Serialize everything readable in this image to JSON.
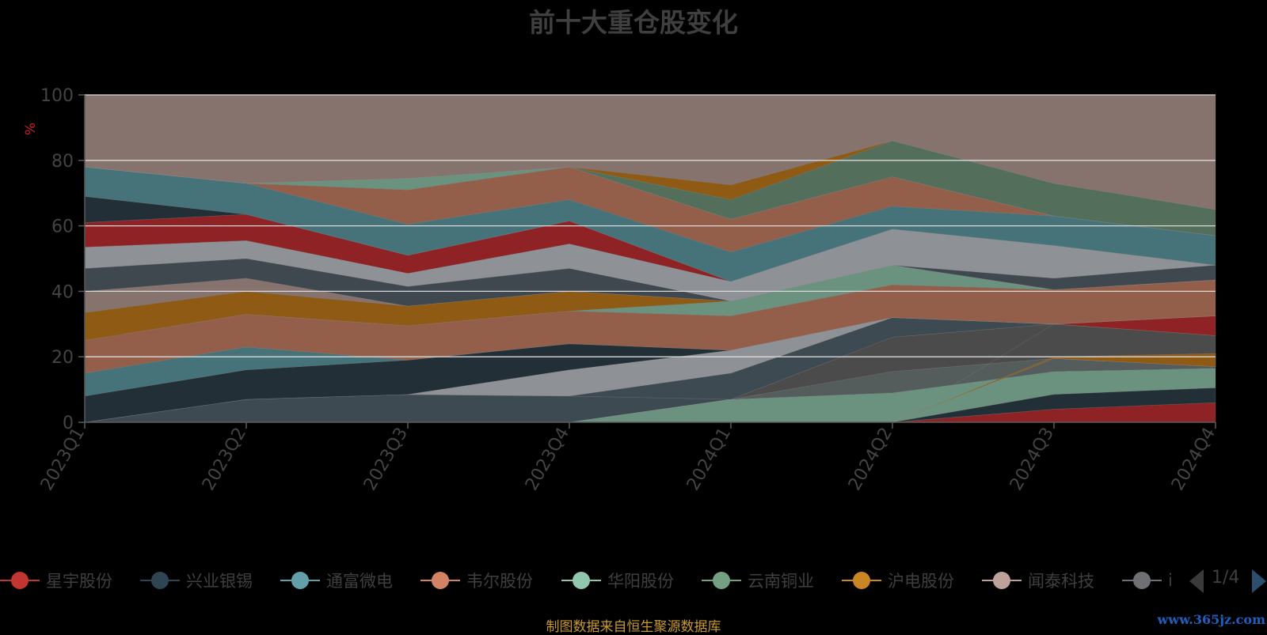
{
  "title": "前十大重仓股变化",
  "source_note": "制图数据来自恒生聚源数据库",
  "watermark": "www.365jz.com",
  "legend_pager": {
    "text": "1/4"
  },
  "chart_data": {
    "type": "area",
    "title": "前十大重仓股变化",
    "ylabel": "%",
    "xlabel": "",
    "ylim": [
      0,
      100
    ],
    "yticks": [
      0,
      20,
      40,
      60,
      80,
      100
    ],
    "grid": true,
    "legend_position": "bottom",
    "categories": [
      "2023Q1",
      "2023Q2",
      "2023Q3",
      "2023Q4",
      "2024Q1",
      "2024Q2",
      "2024Q3",
      "2024Q4"
    ],
    "legend_items": [
      {
        "label": "星宇股份",
        "color": "#c23531"
      },
      {
        "label": "兴业银锡",
        "color": "#2f4554"
      },
      {
        "label": "通富微电",
        "color": "#61a0a8"
      },
      {
        "label": "韦尔股份",
        "color": "#d48265"
      },
      {
        "label": "华阳股份",
        "color": "#91c7ae"
      },
      {
        "label": "云南铜业",
        "color": "#749f83"
      },
      {
        "label": "沪电股份",
        "color": "#ca8622"
      },
      {
        "label": "闻泰科技",
        "color": "#bda29a"
      },
      {
        "label": "i",
        "color": "#6e7074"
      }
    ],
    "bands": [
      {
        "color": "#3e4a51",
        "values": [
          [
            0,
            0
          ],
          [
            0,
            7
          ],
          [
            0,
            8.5
          ],
          [
            0,
            8
          ],
          [
            0,
            7
          ],
          [
            0,
            0
          ],
          [
            0,
            0
          ],
          [
            0,
            0
          ]
        ]
      },
      {
        "color": "#6a927e",
        "values": [
          [
            0,
            0
          ],
          [
            0,
            0
          ],
          [
            0,
            0
          ],
          [
            0,
            0
          ],
          [
            0,
            7
          ],
          [
            0,
            9
          ],
          [
            8.5,
            15.5
          ],
          [
            10.5,
            16.5
          ]
        ]
      },
      {
        "color": "#8f2225",
        "values": [
          [
            0,
            0
          ],
          [
            0,
            0
          ],
          [
            0,
            0
          ],
          [
            0,
            0
          ],
          [
            0,
            0
          ],
          [
            0,
            0
          ],
          [
            0,
            4
          ],
          [
            0,
            6
          ]
        ]
      },
      {
        "color": "#222f37",
        "values": [
          [
            0,
            0
          ],
          [
            0,
            0
          ],
          [
            0,
            0
          ],
          [
            0,
            0
          ],
          [
            0,
            0
          ],
          [
            0,
            0
          ],
          [
            4,
            8.5
          ],
          [
            6,
            10.5
          ]
        ]
      },
      {
        "color": "#545c5c",
        "values": [
          [
            0,
            0
          ],
          [
            0,
            0
          ],
          [
            0,
            0
          ],
          [
            0,
            0
          ],
          [
            7,
            7
          ],
          [
            9,
            15.5
          ],
          [
            15.5,
            19.5
          ],
          [
            16.5,
            17
          ]
        ]
      },
      {
        "color": "#4b4b4b",
        "values": [
          [
            0,
            0
          ],
          [
            0,
            0
          ],
          [
            0,
            0
          ],
          [
            0,
            0
          ],
          [
            7,
            7
          ],
          [
            15.5,
            26
          ],
          [
            19.5,
            30
          ],
          [
            17,
            26.5
          ]
        ]
      },
      {
        "color": "#945f59",
        "values": [
          [
            0,
            0
          ],
          [
            0,
            0
          ],
          [
            0,
            0
          ],
          [
            0,
            0
          ],
          [
            0,
            0
          ],
          [
            0,
            0
          ],
          [
            19.5,
            19.5
          ],
          [
            17,
            21
          ]
        ]
      },
      {
        "color": "#8e5a14",
        "values": [
          [
            0,
            0
          ],
          [
            0,
            0
          ],
          [
            0,
            0
          ],
          [
            0,
            0
          ],
          [
            0,
            0
          ],
          [
            0,
            0
          ],
          [
            19.5,
            20
          ],
          [
            17,
            21
          ]
        ]
      },
      {
        "color": "#3e4a51",
        "values": [
          [
            0,
            0
          ],
          [
            7,
            7
          ],
          [
            8.5,
            8.5
          ],
          [
            8,
            16
          ],
          [
            7,
            15
          ],
          [
            26,
            32
          ],
          [
            30,
            30
          ],
          [
            26.5,
            26.5
          ]
        ]
      },
      {
        "color": "#8f2225",
        "values": [
          [
            0,
            0
          ],
          [
            0,
            0
          ],
          [
            0,
            0
          ],
          [
            0,
            0
          ],
          [
            0,
            0
          ],
          [
            0,
            0
          ],
          [
            30,
            30
          ],
          [
            26.5,
            32.5
          ]
        ]
      },
      {
        "color": "#8e9196",
        "values": [
          [
            0,
            0
          ],
          [
            7,
            7
          ],
          [
            8.5,
            8.5
          ],
          [
            8,
            16
          ],
          [
            15,
            22
          ],
          [
            32,
            32
          ],
          [
            30,
            30
          ],
          [
            32.5,
            32.5
          ]
        ]
      },
      {
        "color": "#222f37",
        "values": [
          [
            0,
            8
          ],
          [
            7,
            16
          ],
          [
            8.5,
            19
          ],
          [
            16,
            24
          ],
          [
            22,
            22
          ],
          [
            32,
            32
          ],
          [
            30,
            30
          ],
          [
            32.5,
            32.5
          ]
        ]
      },
      {
        "color": "#457379",
        "values": [
          [
            8,
            15
          ],
          [
            16,
            23
          ],
          [
            19,
            19
          ],
          [
            24,
            24
          ],
          [
            22,
            22
          ],
          [
            32,
            32
          ],
          [
            30,
            30
          ],
          [
            32.5,
            32.5
          ]
        ]
      },
      {
        "color": "#945f4a",
        "values": [
          [
            15,
            25
          ],
          [
            23,
            33
          ],
          [
            19,
            29.5
          ],
          [
            24,
            34
          ],
          [
            22,
            32.5
          ],
          [
            32,
            42
          ],
          [
            30,
            40.5
          ],
          [
            32.5,
            43.5
          ]
        ]
      },
      {
        "color": "#6a927e",
        "values": [
          [
            25,
            25
          ],
          [
            33,
            33
          ],
          [
            29.5,
            29.5
          ],
          [
            34,
            34
          ],
          [
            32.5,
            37
          ],
          [
            42,
            48
          ],
          [
            40.5,
            40.5
          ],
          [
            43.5,
            43.5
          ]
        ]
      },
      {
        "color": "#8e5a14",
        "values": [
          [
            25,
            33.5
          ],
          [
            33,
            40
          ],
          [
            29.5,
            35.5
          ],
          [
            34,
            40
          ],
          [
            37,
            37
          ],
          [
            48,
            48
          ],
          [
            40.5,
            40.5
          ],
          [
            43.5,
            43.5
          ]
        ]
      },
      {
        "color": "#86736e",
        "values": [
          [
            33.5,
            40
          ],
          [
            40,
            44
          ],
          [
            35.5,
            35.5
          ],
          [
            40,
            40
          ],
          [
            37,
            37
          ],
          [
            48,
            48
          ],
          [
            40.5,
            40.5
          ],
          [
            43.5,
            43.5
          ]
        ]
      },
      {
        "color": "#3f474f",
        "values": [
          [
            40,
            47
          ],
          [
            44,
            50
          ],
          [
            35.5,
            41.5
          ],
          [
            40,
            47
          ],
          [
            37,
            37
          ],
          [
            48,
            48
          ],
          [
            40.5,
            44
          ],
          [
            43.5,
            48
          ]
        ]
      },
      {
        "color": "#8e9196",
        "values": [
          [
            47,
            53.5
          ],
          [
            50,
            55.5
          ],
          [
            41.5,
            45.5
          ],
          [
            47,
            54.5
          ],
          [
            37,
            43
          ],
          [
            48,
            59
          ],
          [
            44,
            54
          ],
          [
            48,
            48
          ]
        ]
      },
      {
        "color": "#8f2225",
        "values": [
          [
            53.5,
            61
          ],
          [
            55.5,
            63.5
          ],
          [
            45.5,
            51
          ],
          [
            54.5,
            61.5
          ],
          [
            43,
            43
          ],
          [
            59,
            59
          ],
          [
            54,
            54
          ],
          [
            48,
            48
          ]
        ]
      },
      {
        "color": "#222f37",
        "values": [
          [
            61,
            69
          ],
          [
            63.5,
            63.5
          ],
          [
            51,
            51
          ],
          [
            61.5,
            61.5
          ],
          [
            43,
            43
          ],
          [
            59,
            59
          ],
          [
            54,
            54
          ],
          [
            48,
            48
          ]
        ]
      },
      {
        "color": "#457379",
        "values": [
          [
            69,
            78
          ],
          [
            63.5,
            73
          ],
          [
            51,
            60.5
          ],
          [
            61.5,
            68
          ],
          [
            43,
            52
          ],
          [
            59,
            66
          ],
          [
            54,
            63
          ],
          [
            48,
            57
          ]
        ]
      },
      {
        "color": "#945f4a",
        "values": [
          [
            78,
            78
          ],
          [
            73,
            73
          ],
          [
            60.5,
            71
          ],
          [
            68,
            78
          ],
          [
            52,
            62
          ],
          [
            66,
            75
          ],
          [
            63,
            63
          ],
          [
            57,
            57
          ]
        ]
      },
      {
        "color": "#6a927e",
        "values": [
          [
            78,
            78
          ],
          [
            73,
            73
          ],
          [
            71,
            74.5
          ],
          [
            78,
            78
          ],
          [
            62,
            62
          ],
          [
            75,
            75
          ],
          [
            63,
            63
          ],
          [
            57,
            57
          ]
        ]
      },
      {
        "color": "#546e5c",
        "values": [
          [
            78,
            78
          ],
          [
            73,
            73
          ],
          [
            74.5,
            74.5
          ],
          [
            78,
            78
          ],
          [
            62,
            68
          ],
          [
            75,
            86
          ],
          [
            63,
            73
          ],
          [
            57,
            65
          ]
        ]
      },
      {
        "color": "#8e5a14",
        "values": [
          [
            78,
            78
          ],
          [
            73,
            73
          ],
          [
            74.5,
            74.5
          ],
          [
            78,
            78
          ],
          [
            68,
            72.5
          ],
          [
            86,
            86
          ],
          [
            73,
            73
          ],
          [
            65,
            65
          ]
        ]
      },
      {
        "color": "#86736e",
        "values": [
          [
            78,
            100
          ],
          [
            73,
            100
          ],
          [
            74.5,
            100
          ],
          [
            78,
            100
          ],
          [
            72.5,
            100
          ],
          [
            86,
            100
          ],
          [
            73,
            100
          ],
          [
            65,
            100
          ]
        ]
      }
    ]
  }
}
